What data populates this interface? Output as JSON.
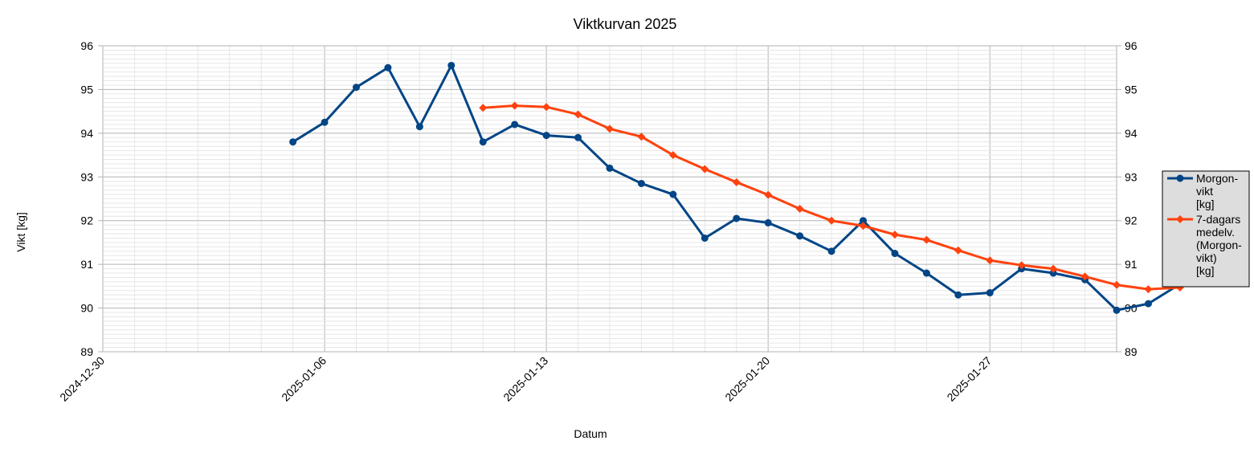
{
  "chart_data": {
    "type": "line",
    "title": "Viktkurvan 2025",
    "xlabel": "Datum",
    "ylabel": "Vikt [kg]",
    "ylim": [
      89,
      96
    ],
    "yticks": [
      89,
      90,
      91,
      92,
      93,
      94,
      95,
      96
    ],
    "xlim": [
      "2024-12-30",
      "2025-01-31"
    ],
    "xticks": [
      "2024-12-30",
      "2025-01-06",
      "2025-01-13",
      "2025-01-20",
      "2025-01-27"
    ],
    "grid": true,
    "legend_position": "right",
    "series": [
      {
        "name": "Morgon-\nvikt\n[kg]",
        "color": "#004586",
        "marker": "circle",
        "points": [
          [
            "2025-01-05",
            93.8
          ],
          [
            "2025-01-06",
            94.25
          ],
          [
            "2025-01-07",
            95.05
          ],
          [
            "2025-01-08",
            95.5
          ],
          [
            "2025-01-09",
            94.15
          ],
          [
            "2025-01-10",
            95.55
          ],
          [
            "2025-01-11",
            93.8
          ],
          [
            "2025-01-12",
            94.2
          ],
          [
            "2025-01-13",
            93.95
          ],
          [
            "2025-01-14",
            93.9
          ],
          [
            "2025-01-15",
            93.2
          ],
          [
            "2025-01-16",
            92.85
          ],
          [
            "2025-01-17",
            92.6
          ],
          [
            "2025-01-18",
            91.6
          ],
          [
            "2025-01-19",
            92.05
          ],
          [
            "2025-01-20",
            91.95
          ],
          [
            "2025-01-21",
            91.65
          ],
          [
            "2025-01-22",
            91.3
          ],
          [
            "2025-01-23",
            92.0
          ],
          [
            "2025-01-24",
            91.25
          ],
          [
            "2025-01-25",
            90.8
          ],
          [
            "2025-01-26",
            90.3
          ],
          [
            "2025-01-27",
            90.35
          ],
          [
            "2025-01-28",
            90.9
          ],
          [
            "2025-01-29",
            90.8
          ],
          [
            "2025-01-30",
            90.65
          ],
          [
            "2025-01-31",
            89.95
          ],
          [
            "2025-02-01",
            90.1
          ],
          [
            "2025-02-02",
            90.55
          ]
        ]
      },
      {
        "name": "7-dagars\nmedelv.\n(Morgon-\nvikt)\n[kg]",
        "color": "#ff420e",
        "marker": "diamond",
        "points": [
          [
            "2025-01-11",
            94.58
          ],
          [
            "2025-01-12",
            94.63
          ],
          [
            "2025-01-13",
            94.6
          ],
          [
            "2025-01-14",
            94.43
          ],
          [
            "2025-01-15",
            94.1
          ],
          [
            "2025-01-16",
            93.92
          ],
          [
            "2025-01-17",
            93.5
          ],
          [
            "2025-01-18",
            93.18
          ],
          [
            "2025-01-19",
            92.88
          ],
          [
            "2025-01-20",
            92.59
          ],
          [
            "2025-01-21",
            92.27
          ],
          [
            "2025-01-22",
            92.0
          ],
          [
            "2025-01-23",
            91.88
          ],
          [
            "2025-01-24",
            91.68
          ],
          [
            "2025-01-25",
            91.56
          ],
          [
            "2025-01-26",
            91.32
          ],
          [
            "2025-01-27",
            91.09
          ],
          [
            "2025-01-28",
            90.98
          ],
          [
            "2025-01-29",
            90.9
          ],
          [
            "2025-01-30",
            90.72
          ],
          [
            "2025-01-31",
            90.53
          ],
          [
            "2025-02-01",
            90.43
          ],
          [
            "2025-02-02",
            90.47
          ]
        ]
      }
    ]
  }
}
